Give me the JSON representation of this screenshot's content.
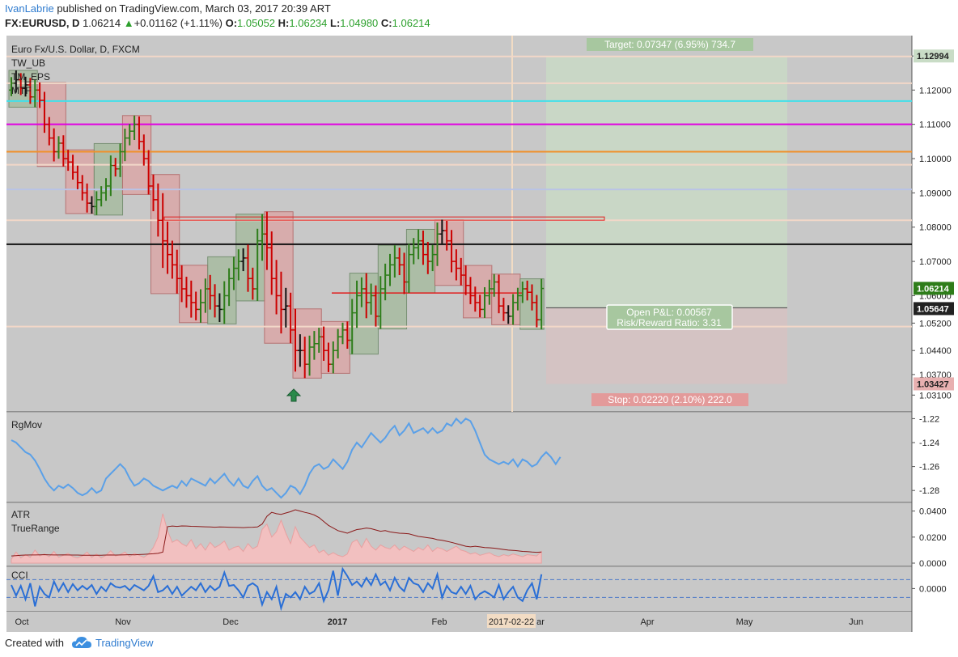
{
  "header": {
    "author": "IvanLabrie",
    "published": " published on TradingView.com, March 03, 2017 20:39 ART",
    "symbol": "FX:EURUSD, D",
    "price": "1.06214",
    "change": "+0.01162 (+1.11%)",
    "o_label": "O:",
    "o_value": "1.05052",
    "h_label": "H:",
    "h_value": "1.06234",
    "l_label": "L:",
    "l_value": "1.04980",
    "c_label": "C:",
    "c_value": "1.06214"
  },
  "footer": {
    "created_with": "Created with",
    "brand": "TradingView"
  },
  "colors": {
    "pane_bg": "#c8c8c8",
    "up": "#2e7d1a",
    "down": "#cc0000",
    "neutral": "#111111",
    "target_fill": "#c9dcc6",
    "stop_fill": "#d7c2c2",
    "cyan": "#40e0ea",
    "magenta": "#e000e0",
    "orange": "#f0902a",
    "lavender": "#b9c3e6",
    "rgmov": "#5aa0e8",
    "atr": "#8b1a1a",
    "tr_fill": "#f2c0c0",
    "cci": "#2a6fd6"
  },
  "chart_data": [
    {
      "type": "ohlc",
      "title": "Euro Fx/U.S. Dollar, D, FXCM",
      "indicators": [
        "TW_UB",
        "TM_EPS",
        "MTF"
      ],
      "ylim": [
        1.028,
        1.134
      ],
      "y_ticks": [
        "1.12994",
        "1.12000",
        "1.11000",
        "1.10000",
        "1.09000",
        "1.08000",
        "1.07000",
        "1.06000",
        "1.05200",
        "1.04400",
        "1.03700",
        "1.03100"
      ],
      "y_tick_values": [
        1.12994,
        1.12,
        1.11,
        1.1,
        1.09,
        1.08,
        1.07,
        1.06,
        1.052,
        1.044,
        1.037,
        1.031
      ],
      "x_labels": [
        "Oct",
        "Nov",
        "Dec",
        "2017",
        "Feb",
        "2017-02-22",
        "ar",
        "Apr",
        "May",
        "Jun"
      ],
      "last_price": "1.06214",
      "entry_price": "1.05647",
      "stop_price": "1.03427",
      "target_price": "1.12994",
      "target_label": "Target: 0.07347 (6.95%) 734.7",
      "stop_label": "Stop: 0.02220 (2.10%) 222.0",
      "pnl_label": "Open P&L: 0.00567",
      "rr_label": "Risk/Reward Ratio: 3.31",
      "horizontal_levels": [
        {
          "price": 1.1298,
          "color": "#f2d7c8"
        },
        {
          "price": 1.122,
          "color": "#f2d7c8"
        },
        {
          "price": 1.1168,
          "color": "#40e0ea"
        },
        {
          "price": 1.11,
          "color": "#e000e0"
        },
        {
          "price": 1.102,
          "color": "#f0902a"
        },
        {
          "price": 1.0982,
          "color": "#f2d7c8"
        },
        {
          "price": 1.091,
          "color": "#b9c3e6"
        },
        {
          "price": 1.082,
          "color": "#f2d7c8"
        },
        {
          "price": 1.075,
          "color": "#111111"
        },
        {
          "price": 1.051,
          "color": "#f2d7c8"
        }
      ],
      "closes": [
        1.122,
        1.123,
        1.1205,
        1.1215,
        1.118,
        1.12,
        1.117,
        1.11,
        1.106,
        1.102,
        1.1045,
        1.1,
        1.099,
        1.096,
        1.093,
        1.09,
        1.087,
        1.086,
        1.088,
        1.09,
        1.092,
        1.098,
        1.097,
        1.102,
        1.106,
        1.108,
        1.11,
        1.105,
        1.1,
        1.092,
        1.088,
        1.082,
        1.076,
        1.072,
        1.069,
        1.065,
        1.062,
        1.06,
        1.058,
        1.056,
        1.058,
        1.062,
        1.06,
        1.057,
        1.056,
        1.06,
        1.065,
        1.068,
        1.07,
        1.071,
        1.065,
        1.062,
        1.076,
        1.078,
        1.074,
        1.065,
        1.06,
        1.056,
        1.057,
        1.05,
        1.044,
        1.044,
        1.04,
        1.045,
        1.046,
        1.048,
        1.044,
        1.04,
        1.044,
        1.048,
        1.05,
        1.047,
        1.055,
        1.06,
        1.062,
        1.058,
        1.06,
        1.054,
        1.062,
        1.066,
        1.069,
        1.071,
        1.069,
        1.064,
        1.072,
        1.074,
        1.076,
        1.072,
        1.07,
        1.072,
        1.078,
        1.079,
        1.076,
        1.07,
        1.068,
        1.066,
        1.063,
        1.06,
        1.058,
        1.056,
        1.06,
        1.062,
        1.064,
        1.057,
        1.055,
        1.054,
        1.058,
        1.06,
        1.062,
        1.061,
        1.058,
        1.053,
        1.0621
      ],
      "rgmov_ylim": [
        -1.29,
        -1.215
      ],
      "rgmov_ticks": [
        "-1.22",
        "-1.24",
        "-1.26",
        "-1.28"
      ],
      "rgmov": [
        -1.238,
        -1.24,
        -1.244,
        -1.248,
        -1.25,
        -1.255,
        -1.262,
        -1.27,
        -1.276,
        -1.28,
        -1.276,
        -1.278,
        -1.275,
        -1.278,
        -1.282,
        -1.284,
        -1.282,
        -1.278,
        -1.282,
        -1.28,
        -1.27,
        -1.266,
        -1.262,
        -1.258,
        -1.262,
        -1.27,
        -1.276,
        -1.274,
        -1.27,
        -1.272,
        -1.276,
        -1.278,
        -1.28,
        -1.278,
        -1.276,
        -1.278,
        -1.272,
        -1.276,
        -1.27,
        -1.272,
        -1.274,
        -1.276,
        -1.27,
        -1.274,
        -1.27,
        -1.266,
        -1.272,
        -1.276,
        -1.27,
        -1.276,
        -1.278,
        -1.272,
        -1.268,
        -1.276,
        -1.28,
        -1.278,
        -1.282,
        -1.286,
        -1.282,
        -1.276,
        -1.278,
        -1.283,
        -1.276,
        -1.266,
        -1.26,
        -1.258,
        -1.262,
        -1.26,
        -1.254,
        -1.258,
        -1.262,
        -1.256,
        -1.246,
        -1.24,
        -1.244,
        -1.238,
        -1.232,
        -1.236,
        -1.24,
        -1.236,
        -1.23,
        -1.226,
        -1.234,
        -1.23,
        -1.224,
        -1.232,
        -1.23,
        -1.228,
        -1.232,
        -1.228,
        -1.232,
        -1.23,
        -1.224,
        -1.226,
        -1.22,
        -1.224,
        -1.22,
        -1.222,
        -1.23,
        -1.24,
        -1.25,
        -1.254,
        -1.256,
        -1.258,
        -1.256,
        -1.258,
        -1.254,
        -1.26,
        -1.254,
        -1.256,
        -1.26,
        -1.258,
        -1.252,
        -1.248,
        -1.252,
        -1.258,
        -1.252
      ],
      "atr_ylim": [
        0,
        0.0435
      ],
      "atr_ticks": [
        "0.0400",
        "0.0200",
        "0.0000"
      ],
      "atr": [
        0.0055,
        0.0058,
        0.006,
        0.0062,
        0.0063,
        0.0063,
        0.0064,
        0.0065,
        0.0064,
        0.0063,
        0.0063,
        0.0064,
        0.0063,
        0.0062,
        0.0062,
        0.0061,
        0.006,
        0.0061,
        0.006,
        0.0061,
        0.0062,
        0.0063,
        0.0062,
        0.0063,
        0.0064,
        0.0065,
        0.0064,
        0.0066,
        0.0068,
        0.007,
        0.0072,
        0.0075,
        0.0085,
        0.028,
        0.0285,
        0.0282,
        0.0286,
        0.0285,
        0.0283,
        0.0282,
        0.028,
        0.0279,
        0.0278,
        0.0276,
        0.0278,
        0.0277,
        0.0276,
        0.0275,
        0.0274,
        0.0273,
        0.0275,
        0.0276,
        0.0278,
        0.03,
        0.036,
        0.039,
        0.038,
        0.0375,
        0.0385,
        0.0395,
        0.041,
        0.04,
        0.039,
        0.0382,
        0.037,
        0.035,
        0.032,
        0.029,
        0.027,
        0.025,
        0.024,
        0.023,
        0.0245,
        0.0258,
        0.0262,
        0.027,
        0.0265,
        0.0255,
        0.0245,
        0.025,
        0.024,
        0.0235,
        0.023,
        0.0228,
        0.0225,
        0.0215,
        0.0205,
        0.02,
        0.0195,
        0.019,
        0.018,
        0.0175,
        0.0168,
        0.016,
        0.015,
        0.014,
        0.013,
        0.0125,
        0.013,
        0.0125,
        0.012,
        0.0118,
        0.0115,
        0.011,
        0.0105,
        0.01,
        0.0098,
        0.0095,
        0.009,
        0.0088,
        0.0085,
        0.0083,
        0.0086
      ],
      "true_range": [
        0.003,
        0.0085,
        0.004,
        0.0065,
        0.0045,
        0.01,
        0.0055,
        0.007,
        0.005,
        0.009,
        0.0045,
        0.006,
        0.0075,
        0.005,
        0.004,
        0.0055,
        0.0085,
        0.0045,
        0.007,
        0.004,
        0.006,
        0.0095,
        0.0055,
        0.0065,
        0.0085,
        0.005,
        0.0075,
        0.006,
        0.0045,
        0.007,
        0.012,
        0.02,
        0.038,
        0.025,
        0.016,
        0.018,
        0.015,
        0.013,
        0.018,
        0.011,
        0.015,
        0.01,
        0.016,
        0.012,
        0.014,
        0.017,
        0.01,
        0.012,
        0.013,
        0.009,
        0.015,
        0.011,
        0.013,
        0.026,
        0.03,
        0.02,
        0.024,
        0.033,
        0.023,
        0.015,
        0.028,
        0.02,
        0.016,
        0.012,
        0.014,
        0.008,
        0.01,
        0.006,
        0.008,
        0.006,
        0.005,
        0.007,
        0.016,
        0.018,
        0.012,
        0.019,
        0.013,
        0.01,
        0.014,
        0.012,
        0.011,
        0.014,
        0.01,
        0.013,
        0.011,
        0.009,
        0.012,
        0.01,
        0.014,
        0.009,
        0.012,
        0.011,
        0.009,
        0.011,
        0.013,
        0.01,
        0.009,
        0.007,
        0.008,
        0.006,
        0.007,
        0.008,
        0.006,
        0.005,
        0.0065,
        0.0055,
        0.007,
        0.006,
        0.005,
        0.0065,
        0.006,
        0.0055,
        0.009
      ],
      "cci_ylim": [
        -260,
        240
      ],
      "cci_ticks": [
        "0.0000"
      ],
      "cci": [
        40,
        -80,
        30,
        -120,
        60,
        -200,
        20,
        -60,
        -100,
        80,
        -30,
        60,
        -40,
        50,
        -20,
        30,
        -10,
        40,
        -60,
        20,
        -30,
        60,
        20,
        10,
        30,
        -20,
        40,
        10,
        -20,
        30,
        140,
        -40,
        -20,
        30,
        -60,
        20,
        -80,
        -30,
        20,
        -20,
        60,
        -40,
        30,
        -20,
        20,
        180,
        30,
        40,
        -20,
        -100,
        30,
        60,
        20,
        -180,
        -40,
        -120,
        20,
        -220,
        -60,
        -100,
        -40,
        -120,
        20,
        -60,
        -30,
        60,
        -140,
        -20,
        200,
        -80,
        220,
        140,
        40,
        80,
        20,
        120,
        40,
        160,
        40,
        80,
        -20,
        120,
        20,
        -30,
        120,
        60,
        40,
        -40,
        60,
        0,
        160,
        -100,
        30,
        -40,
        -60,
        20,
        -60,
        30,
        -120,
        -60,
        -30,
        -60,
        -100,
        40,
        -120,
        -40,
        20,
        -100,
        -140,
        -20,
        60,
        -120,
        160
      ]
    }
  ]
}
